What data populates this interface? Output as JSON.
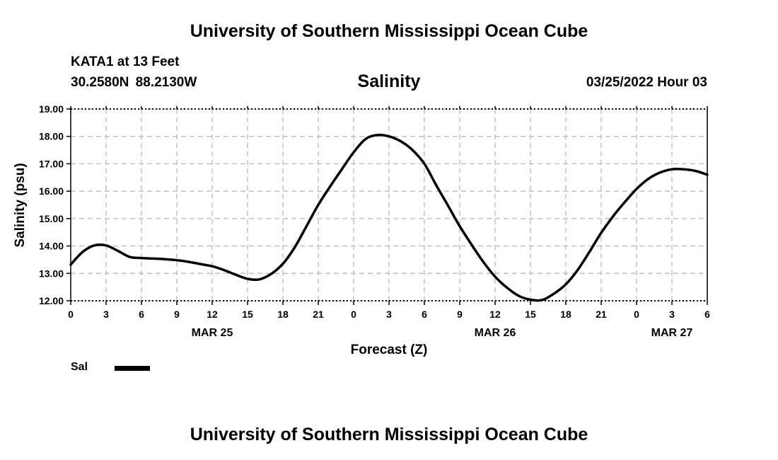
{
  "header": {
    "title": "University of Southern Mississippi Ocean Cube",
    "station": "KATA1 at 13 Feet",
    "coords": "30.2580N  88.2130W",
    "chart_title": "Salinity",
    "issued": "03/25/2022 Hour 03"
  },
  "footer": {
    "title": "University of Southern Mississippi Ocean Cube"
  },
  "legend": {
    "label": "Sal"
  },
  "chart_data": {
    "type": "line",
    "title": "Salinity",
    "xlabel": "Forecast (Z)",
    "ylabel": "Salinity (psu)",
    "ylim": [
      12.0,
      19.0
    ],
    "xlim": [
      0,
      54
    ],
    "x_unit": "forecast hour",
    "y_ticks": [
      "12.00",
      "13.00",
      "14.00",
      "15.00",
      "16.00",
      "17.00",
      "18.00",
      "19.00"
    ],
    "x_ticks": [
      "0",
      "3",
      "6",
      "9",
      "12",
      "15",
      "18",
      "21",
      "0",
      "3",
      "6",
      "9",
      "12",
      "15",
      "18",
      "21",
      "0",
      "3",
      "6"
    ],
    "date_labels": [
      {
        "label": "MAR 25",
        "at": 12
      },
      {
        "label": "MAR 26",
        "at": 36
      },
      {
        "label": "MAR 27",
        "at": 51
      }
    ],
    "grid": true,
    "legend_position": "bottom-left",
    "line_color": "#000000",
    "series": [
      {
        "name": "Sal",
        "x": [
          0,
          1,
          2,
          3,
          4,
          5,
          6,
          7,
          8,
          9,
          10,
          11,
          12,
          13,
          14,
          15,
          16,
          17,
          18,
          19,
          20,
          21,
          22,
          23,
          24,
          25,
          26,
          27,
          28,
          29,
          30,
          31,
          32,
          33,
          34,
          35,
          36,
          37,
          38,
          39,
          40,
          41,
          42,
          43,
          44,
          45,
          46,
          47,
          48,
          49,
          50,
          51,
          52,
          53,
          54
        ],
        "values": [
          13.32,
          13.78,
          14.02,
          14.02,
          13.82,
          13.6,
          13.56,
          13.54,
          13.52,
          13.48,
          13.42,
          13.34,
          13.26,
          13.12,
          12.95,
          12.8,
          12.78,
          12.98,
          13.35,
          13.95,
          14.72,
          15.5,
          16.17,
          16.8,
          17.42,
          17.9,
          18.05,
          18.0,
          17.82,
          17.5,
          17.0,
          16.22,
          15.48,
          14.72,
          14.05,
          13.42,
          12.88,
          12.48,
          12.18,
          12.04,
          12.03,
          12.26,
          12.6,
          13.12,
          13.78,
          14.48,
          15.08,
          15.6,
          16.08,
          16.45,
          16.68,
          16.8,
          16.8,
          16.74,
          16.6
        ]
      }
    ]
  }
}
